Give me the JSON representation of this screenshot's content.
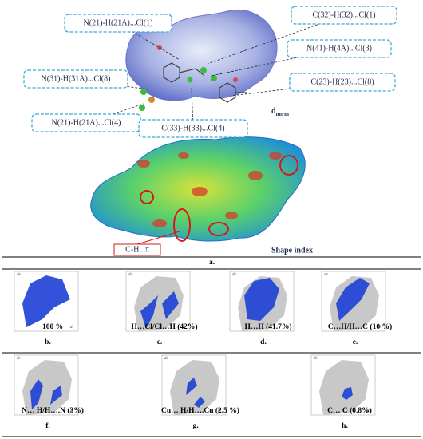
{
  "panel_a": {
    "interaction_labels": [
      "N(21)-H(21A)...Cl(1)",
      "C(32)-H(32)...Cl(1)",
      "N(41)-H(4A)...Cl(3)",
      "N(31)-H(31A)...Cl(8)",
      "C(23)-H(23)...Cl(8)",
      "N(21)-H(21A)...Cl(4)",
      "C(33)-H(33)...Cl(4)"
    ],
    "dnorm": {
      "base": "d",
      "sub": "norm"
    },
    "pi_label": "C-H...π",
    "shape_index": "Shape index",
    "letter": "a."
  },
  "fingerprint_plots": {
    "axis_labels": {
      "y": "de",
      "x": "di"
    },
    "plots": [
      {
        "caption": "100 %",
        "letter": "b."
      },
      {
        "caption": "H…Cl/Cl…H (42%)",
        "letter": "c."
      },
      {
        "caption": "H…H (41.7%)",
        "letter": "d."
      },
      {
        "caption": "C…H/H…C (10 %)",
        "letter": "e."
      },
      {
        "caption": "N… H/H….N (3%)",
        "letter": "f."
      },
      {
        "caption": "Cu… H/H….Cu (2.5 %)",
        "letter": "g."
      },
      {
        "caption": "C… C (0.8%)",
        "letter": "h."
      }
    ]
  }
}
